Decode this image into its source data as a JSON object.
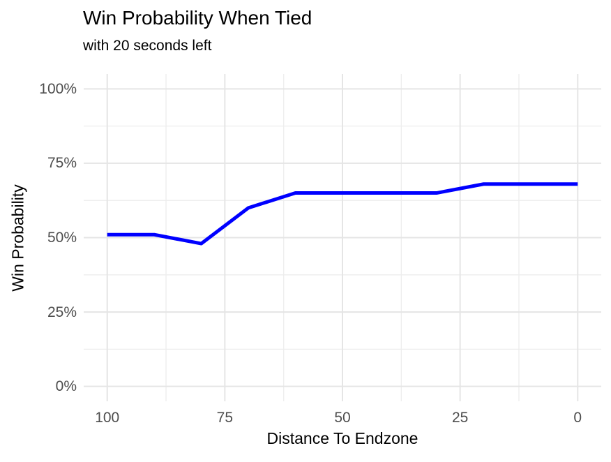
{
  "chart_data": {
    "type": "line",
    "title": "Win Probability When Tied",
    "subtitle": "with 20 seconds left",
    "xlabel": "Distance To Endzone",
    "ylabel": "Win Probability",
    "x": [
      100,
      90,
      80,
      70,
      60,
      50,
      40,
      30,
      20,
      10,
      0
    ],
    "y": [
      51,
      51,
      48,
      60,
      65,
      65,
      65,
      65,
      68,
      68,
      68
    ],
    "y_unit": "percent",
    "x_axis_reversed": true,
    "xlim": [
      105,
      -5
    ],
    "ylim": [
      -5,
      105
    ],
    "x_major_ticks": [
      100,
      75,
      50,
      25,
      0
    ],
    "x_tick_labels": [
      "100",
      "75",
      "50",
      "25",
      "0"
    ],
    "x_minor_ticks": [
      87.5,
      62.5,
      37.5,
      12.5
    ],
    "y_major_ticks": [
      0,
      25,
      50,
      75,
      100
    ],
    "y_tick_labels": [
      "0%",
      "25%",
      "50%",
      "75%",
      "100%"
    ],
    "y_minor_ticks": [
      12.5,
      37.5,
      62.5,
      87.5
    ],
    "grid": "major+minor",
    "legend": "none",
    "colors": {
      "line": "#0000FF",
      "grid_major": "#E5E5E5",
      "grid_minor": "#EDEDED",
      "tick_label": "#4D4D4D",
      "text": "#000000",
      "background": "#FFFFFF"
    }
  }
}
